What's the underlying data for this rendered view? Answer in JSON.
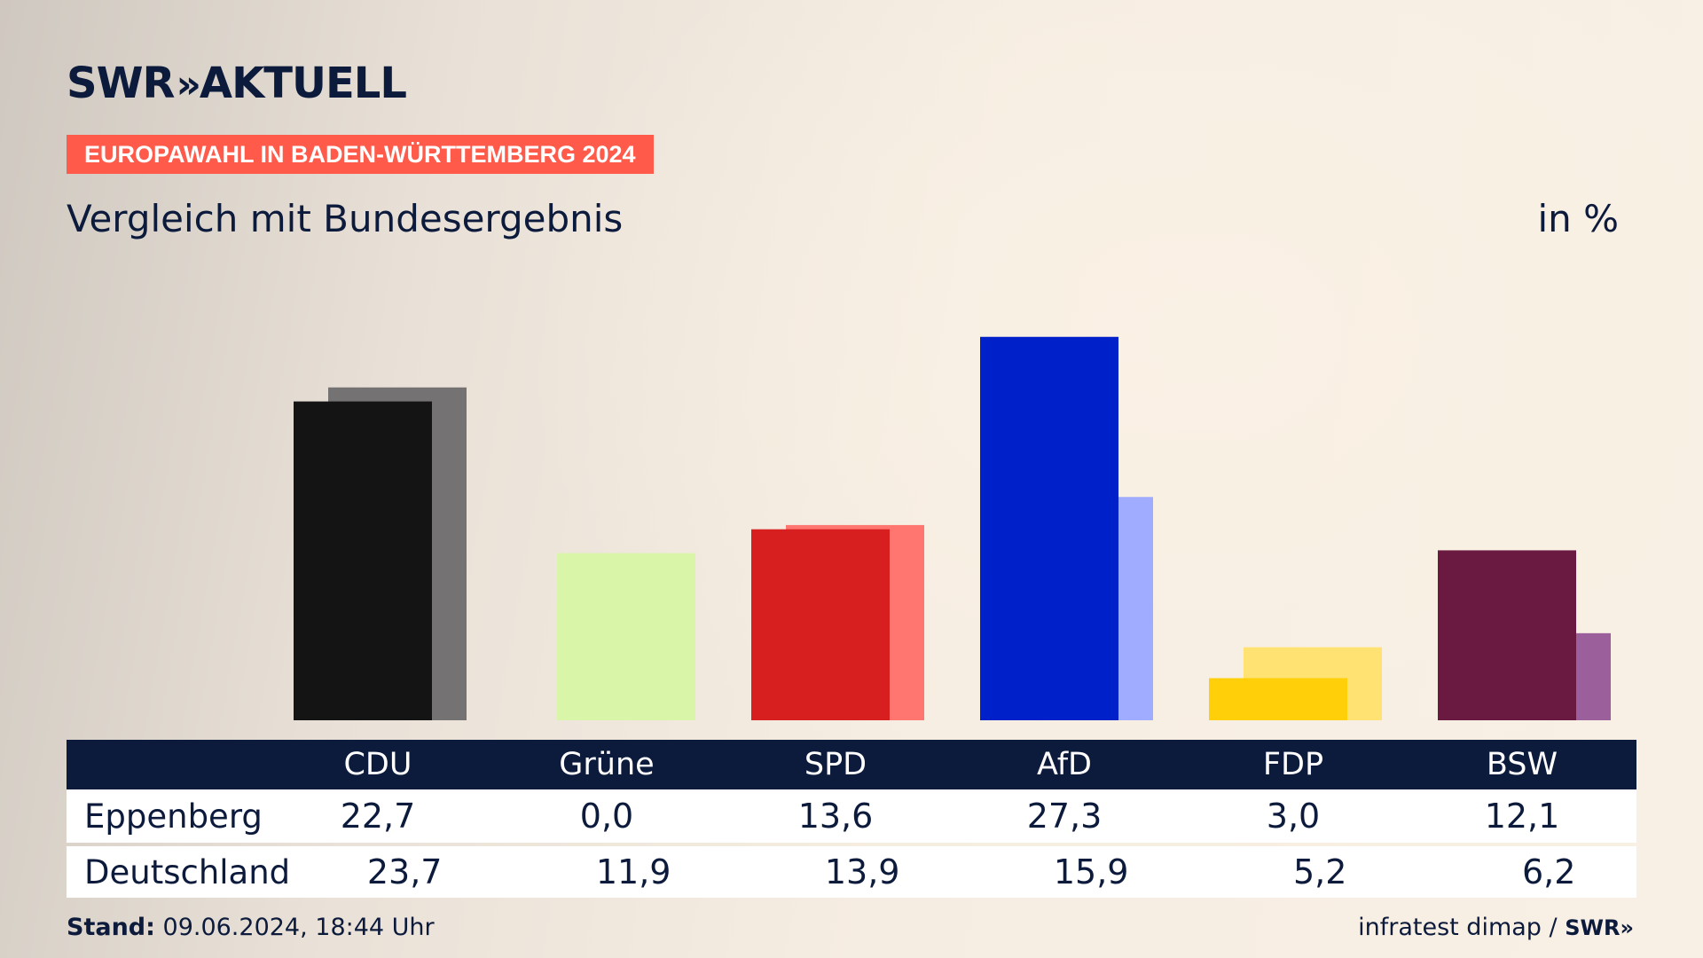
{
  "brand": {
    "name": "SWR",
    "chevrons": "»",
    "product": "AKTUELL"
  },
  "badge": {
    "text": "EUROPAWAHL IN BADEN-WÜRTTEMBERG 2024",
    "color": "#ff5a4a"
  },
  "subtitle": "Vergleich mit Bundesergebnis",
  "unit": "in %",
  "table": {
    "rows": [
      {
        "label": "Eppenberg",
        "values": [
          "22,7",
          "0,0",
          "13,6",
          "27,3",
          "3,0",
          "12,1"
        ]
      },
      {
        "label": "Deutschland",
        "values": [
          "23,7",
          "11,9",
          "13,9",
          "15,9",
          "5,2",
          "6,2"
        ]
      }
    ]
  },
  "chart_data": {
    "type": "bar",
    "categories": [
      "CDU",
      "Grüne",
      "SPD",
      "AfD",
      "FDP",
      "BSW"
    ],
    "series": [
      {
        "name": "Eppenberg",
        "values": [
          22.7,
          0.0,
          13.6,
          27.3,
          3.0,
          12.1
        ],
        "colors": [
          "#141414",
          "#c8f08c",
          "#d71f1f",
          "#0021c9",
          "#ffcf0a",
          "#6a1a41"
        ]
      },
      {
        "name": "Deutschland",
        "values": [
          23.7,
          11.9,
          13.9,
          15.9,
          5.2,
          6.2
        ],
        "colors": [
          "#747272",
          "#d9f5a8",
          "#ff7570",
          "#a0acff",
          "#ffe272",
          "#9b609c"
        ]
      }
    ],
    "ylim": [
      0,
      30
    ],
    "grid": false,
    "legend": "table below chart"
  },
  "footer": {
    "stand_label": "Stand:",
    "stand_value": "09.06.2024, 18:44 Uhr",
    "source": "infratest dimap",
    "separator": "/",
    "source_brand": "SWR",
    "source_brand_chevrons": "»"
  }
}
